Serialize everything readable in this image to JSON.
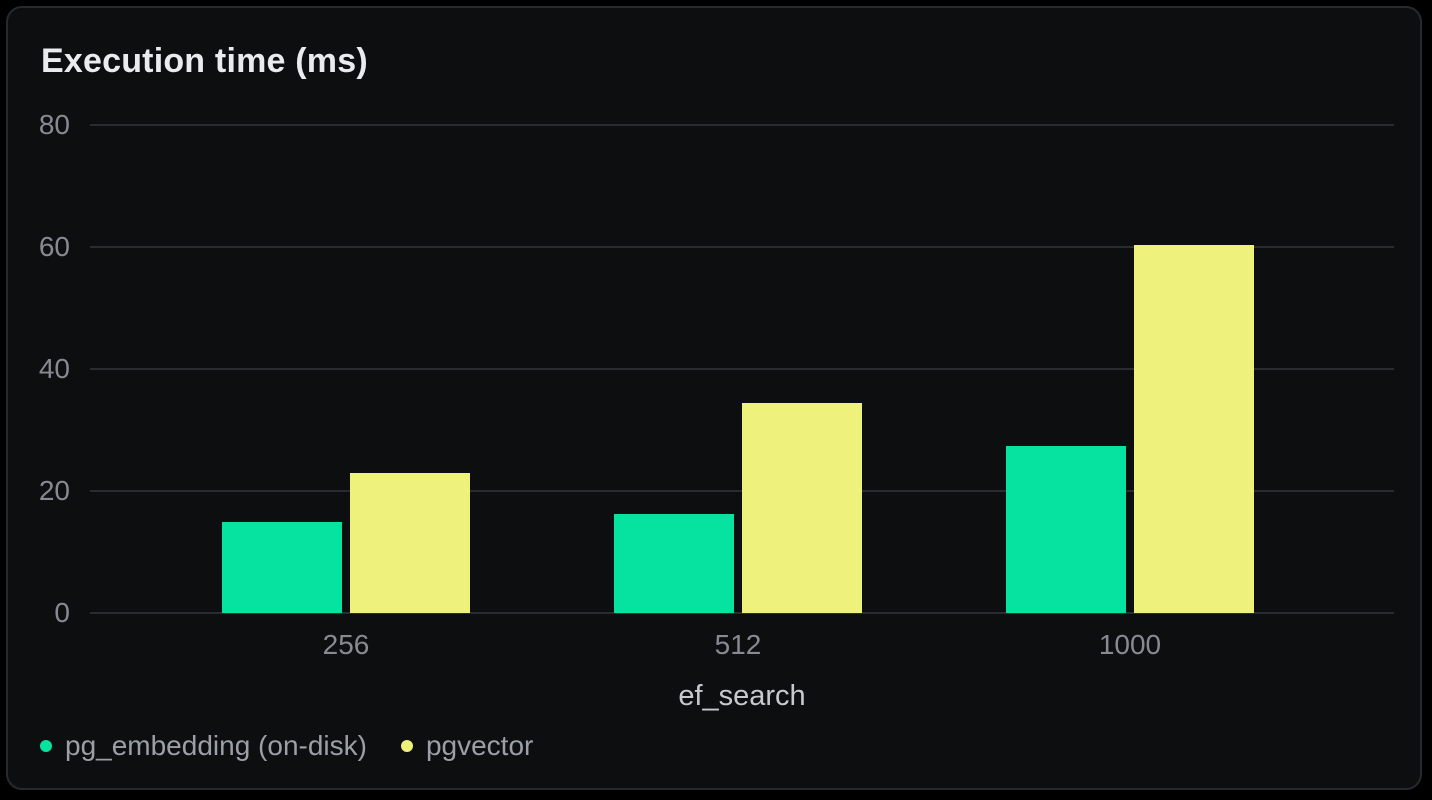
{
  "chart_data": {
    "type": "bar",
    "title": "Execution time (ms)",
    "xlabel": "ef_search",
    "ylabel": "",
    "categories": [
      "256",
      "512",
      "1000"
    ],
    "series": [
      {
        "name": "pg_embedding (on-disk)",
        "color": "#06e3a0",
        "values": [
          15,
          16.3,
          27.4
        ]
      },
      {
        "name": "pgvector",
        "color": "#eef17c",
        "values": [
          23,
          34.4,
          60.3
        ]
      }
    ],
    "ylim": [
      0,
      80
    ],
    "yticks": [
      0,
      20,
      40,
      60,
      80
    ],
    "grid": "horizontal",
    "legend_position": "bottom-left"
  },
  "colors": {
    "page_bg": "#000000",
    "card_bg": "#0d0e10",
    "card_border": "#26292e",
    "title_text": "#e9ebee",
    "gridline": "#2a2c2f",
    "tick_text": "#868a91",
    "axis_title_text": "#c6c9cd",
    "legend_text": "#9aa0a6"
  }
}
